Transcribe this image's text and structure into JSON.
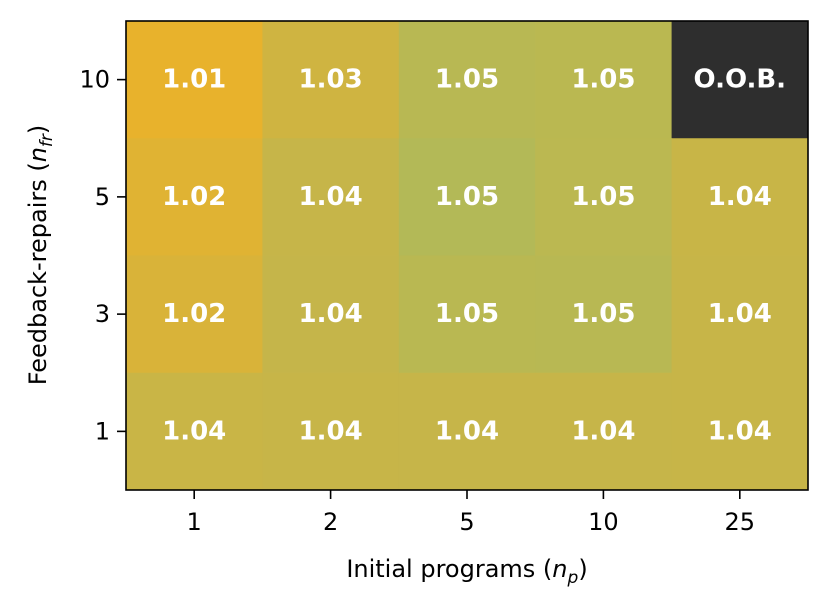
{
  "chart_data": {
    "type": "heatmap",
    "x_categories": [
      "1",
      "2",
      "5",
      "10",
      "25"
    ],
    "y_categories": [
      "10",
      "5",
      "3",
      "1"
    ],
    "xlabel": {
      "main": "Initial programs (",
      "var": "n",
      "sub": "p",
      "close": ")"
    },
    "ylabel": {
      "main": "Feedback-repairs (",
      "var": "n",
      "sub": "fr",
      "close": ")"
    },
    "cells": [
      [
        {
          "label": "1.01",
          "value": 1.01,
          "color": "#e8b22c"
        },
        {
          "label": "1.03",
          "value": 1.03,
          "color": "#cfb441"
        },
        {
          "label": "1.05",
          "value": 1.05,
          "color": "#b8b853"
        },
        {
          "label": "1.05",
          "value": 1.05,
          "color": "#bab851"
        },
        {
          "label": "O.O.B.",
          "value": null,
          "color": "#2e2e2e"
        }
      ],
      [
        {
          "label": "1.02",
          "value": 1.02,
          "color": "#e0b333"
        },
        {
          "label": "1.04",
          "value": 1.04,
          "color": "#c6b549"
        },
        {
          "label": "1.05",
          "value": 1.05,
          "color": "#b3b957"
        },
        {
          "label": "1.05",
          "value": 1.05,
          "color": "#bbb851"
        },
        {
          "label": "1.04",
          "value": 1.04,
          "color": "#c8b547"
        }
      ],
      [
        {
          "label": "1.02",
          "value": 1.02,
          "color": "#d9b339"
        },
        {
          "label": "1.04",
          "value": 1.04,
          "color": "#c5b54a"
        },
        {
          "label": "1.05",
          "value": 1.05,
          "color": "#b9b852"
        },
        {
          "label": "1.05",
          "value": 1.05,
          "color": "#b8b853"
        },
        {
          "label": "1.04",
          "value": 1.04,
          "color": "#c7b548"
        }
      ],
      [
        {
          "label": "1.04",
          "value": 1.04,
          "color": "#c9b546"
        },
        {
          "label": "1.04",
          "value": 1.04,
          "color": "#c7b548"
        },
        {
          "label": "1.04",
          "value": 1.04,
          "color": "#c6b549"
        },
        {
          "label": "1.04",
          "value": 1.04,
          "color": "#c6b549"
        },
        {
          "label": "1.04",
          "value": 1.04,
          "color": "#c7b548"
        }
      ]
    ]
  }
}
